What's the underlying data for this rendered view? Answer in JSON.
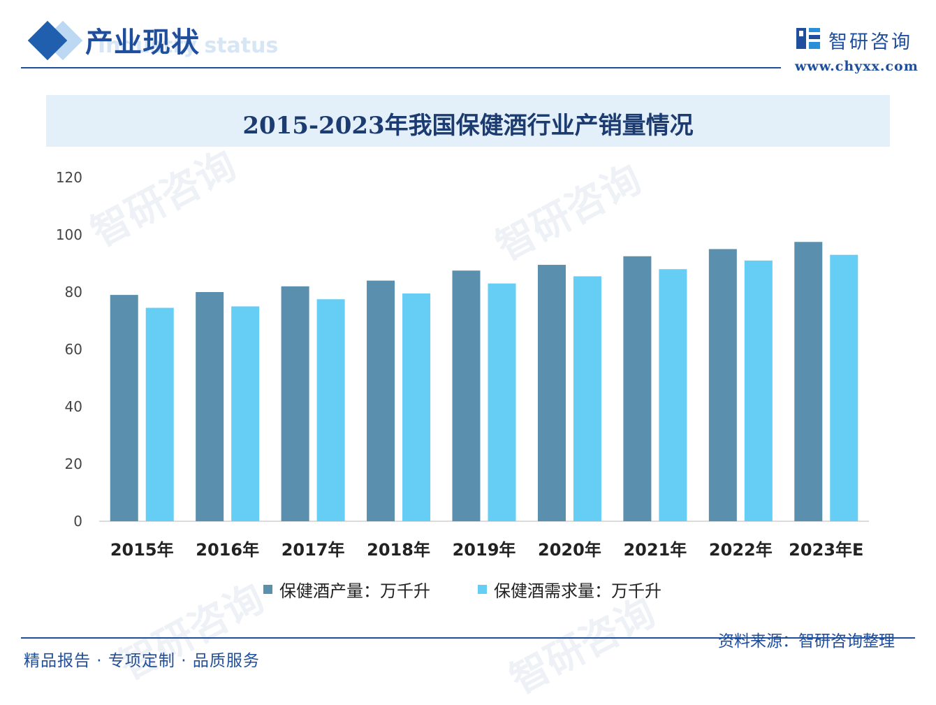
{
  "header": {
    "section_title": "产业现状",
    "section_subtitle": "Industry status",
    "brand_name": "智研咨询",
    "brand_url": "www.chyxx.com"
  },
  "watermark": {
    "text": "智研咨询"
  },
  "chart_data": {
    "type": "bar",
    "title": "2015-2023年我国保健酒行业产销量情况",
    "categories": [
      "2015年",
      "2016年",
      "2017年",
      "2018年",
      "2019年",
      "2020年",
      "2021年",
      "2022年",
      "2023年E"
    ],
    "series": [
      {
        "name": "保健酒产量：万千升",
        "color": "#5a8fad",
        "values": [
          79,
          80,
          82,
          84,
          87.5,
          89.5,
          92.5,
          95,
          97.5
        ]
      },
      {
        "name": "保健酒需求量：万千升",
        "color": "#66cdf5",
        "values": [
          74.5,
          75,
          77.5,
          79.5,
          83,
          85.5,
          88,
          91,
          93
        ]
      }
    ],
    "yticks": [
      0,
      20,
      40,
      60,
      80,
      100,
      120
    ],
    "ylim": [
      0,
      120
    ],
    "grid": false,
    "legend_position": "bottom"
  },
  "footer": {
    "tagline": "精品报告 · 专项定制 · 品质服务",
    "source": "资料来源：智研咨询整理"
  }
}
